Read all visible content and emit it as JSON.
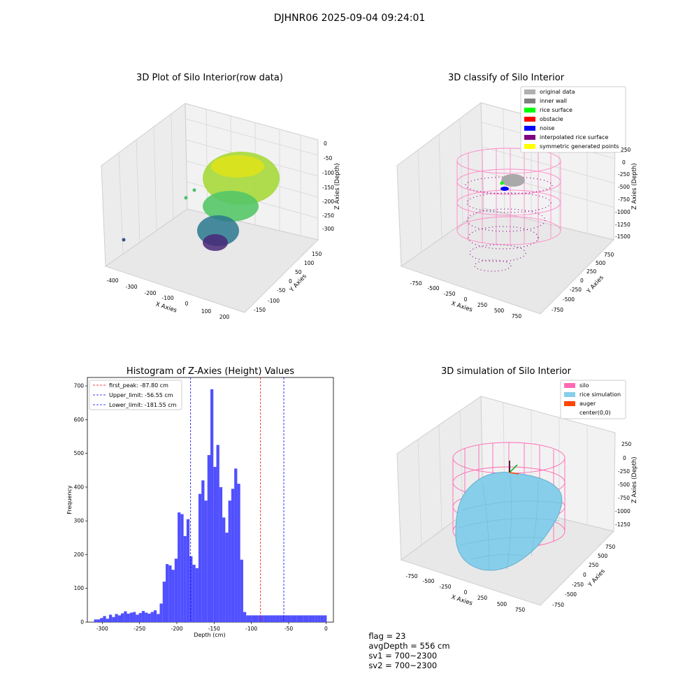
{
  "page": {
    "suptitle": "DJHNR06 2025-09-04 09:24:01"
  },
  "panels": {
    "raw": {
      "title": "3D Plot of Silo Interior(row data)",
      "x_label": "X Axies",
      "y_label": "Y Axies",
      "z_label": "Z Axies (Depth)",
      "x_ticks": [
        "-400",
        "-300",
        "-200",
        "-100",
        "0",
        "100",
        "200"
      ],
      "y_ticks": [
        "-150",
        "-100",
        "-50",
        "0",
        "50",
        "100",
        "150"
      ],
      "z_ticks": [
        "0",
        "-50",
        "-100",
        "-150",
        "-200",
        "-250",
        "-300"
      ]
    },
    "classify": {
      "title": "3D classify of Silo Interior",
      "x_label": "X Axies",
      "y_label": "Y Axies",
      "z_label": "Z Axies (Depth)",
      "x_ticks": [
        "-750",
        "-500",
        "-250",
        "0",
        "250",
        "500",
        "750"
      ],
      "y_ticks": [
        "-750",
        "-500",
        "-250",
        "0",
        "250",
        "500",
        "750"
      ],
      "z_ticks": [
        "250",
        "0",
        "-250",
        "-500",
        "-750",
        "-1000",
        "-1250",
        "-1500"
      ],
      "legend": [
        {
          "label": "original data",
          "color": "#b0b0b0"
        },
        {
          "label": "inner wall",
          "color": "#808080"
        },
        {
          "label": "rice surface",
          "color": "#00ff00"
        },
        {
          "label": "obstacle",
          "color": "#ff0000"
        },
        {
          "label": "noise",
          "color": "#0000ff"
        },
        {
          "label": "interpolated rice surface",
          "color": "#800080"
        },
        {
          "label": "symmetric generated points",
          "color": "#ffff00"
        }
      ]
    },
    "simulation": {
      "title": "3D simulation of Silo Interior",
      "x_label": "X Axies",
      "y_label": "Y Axies",
      "z_label": "Z Axies (Depth)",
      "x_ticks": [
        "-750",
        "-500",
        "-250",
        "0",
        "250",
        "500",
        "750"
      ],
      "y_ticks": [
        "-750",
        "-500",
        "-250",
        "0",
        "250",
        "500",
        "750"
      ],
      "z_ticks": [
        "250",
        "0",
        "-250",
        "-500",
        "-750",
        "-1000",
        "-1250"
      ],
      "legend": [
        {
          "label": "silo",
          "color": "#ff69b4"
        },
        {
          "label": "rice simulation",
          "color": "#87ceeb"
        },
        {
          "label": "auger",
          "color": "#ff4500"
        },
        {
          "label": "center(0,0)",
          "color": "#ffffff"
        }
      ]
    }
  },
  "chart_data": {
    "type": "bar",
    "title": "Histogram of Z-Axies (Height) Values",
    "xlabel": "Depth (cm)",
    "ylabel": "Frequency",
    "xlim": [
      -320,
      10
    ],
    "ylim": [
      0,
      725
    ],
    "x_ticks": [
      -300,
      -250,
      -200,
      -150,
      -100,
      -50,
      0
    ],
    "y_ticks": [
      0,
      100,
      200,
      300,
      400,
      500,
      600,
      700
    ],
    "bin_width": 4,
    "bin_starts": [
      -311,
      -307,
      -303,
      -299,
      -295,
      -291,
      -287,
      -283,
      -279,
      -275,
      -271,
      -267,
      -263,
      -259,
      -255,
      -251,
      -247,
      -243,
      -239,
      -235,
      -231,
      -227,
      -223,
      -219,
      -215,
      -211,
      -207,
      -203,
      -199,
      -195,
      -191,
      -187,
      -183,
      -179,
      -175,
      -171,
      -167,
      -163,
      -159,
      -155,
      -151,
      -147,
      -143,
      -139,
      -135,
      -131,
      -127,
      -123,
      -119,
      -115,
      -111,
      -107,
      -103,
      -99,
      -95,
      -91,
      -87,
      -83,
      -79,
      -75,
      -71,
      -67,
      -63,
      -59,
      -55,
      -51,
      -47,
      -43,
      -39,
      -35,
      -31,
      -27,
      -23,
      -19,
      -15,
      -11,
      -7,
      -3
    ],
    "values": [
      8,
      8,
      12,
      18,
      10,
      22,
      15,
      24,
      20,
      26,
      32,
      25,
      28,
      30,
      22,
      27,
      33,
      28,
      25,
      30,
      35,
      24,
      55,
      120,
      172,
      168,
      155,
      188,
      325,
      320,
      255,
      305,
      195,
      170,
      160,
      380,
      420,
      360,
      495,
      690,
      460,
      525,
      400,
      310,
      265,
      360,
      395,
      455,
      410,
      185,
      30,
      20,
      20,
      20,
      20,
      20,
      20,
      20,
      20,
      20,
      20,
      20,
      20,
      20,
      20,
      20,
      20,
      20,
      20,
      20,
      20,
      20,
      20,
      20,
      20,
      20,
      20,
      20
    ],
    "vlines": [
      {
        "label": "first_peak: -87.80 cm",
        "value": -87.8,
        "color": "#ff0000"
      },
      {
        "label": "Upper_limit: -56.55 cm",
        "value": -56.55,
        "color": "#0000ff"
      },
      {
        "label": "Lower_limit: -181.55 cm",
        "value": -181.55,
        "color": "#0000ff"
      }
    ],
    "bar_color": "#4d4dff"
  },
  "footer": {
    "flag": "flag = 23",
    "avg": "avgDepth = 556 cm",
    "sv1": "sv1 = 700~2300",
    "sv2": "sv2 = 700~2300"
  }
}
